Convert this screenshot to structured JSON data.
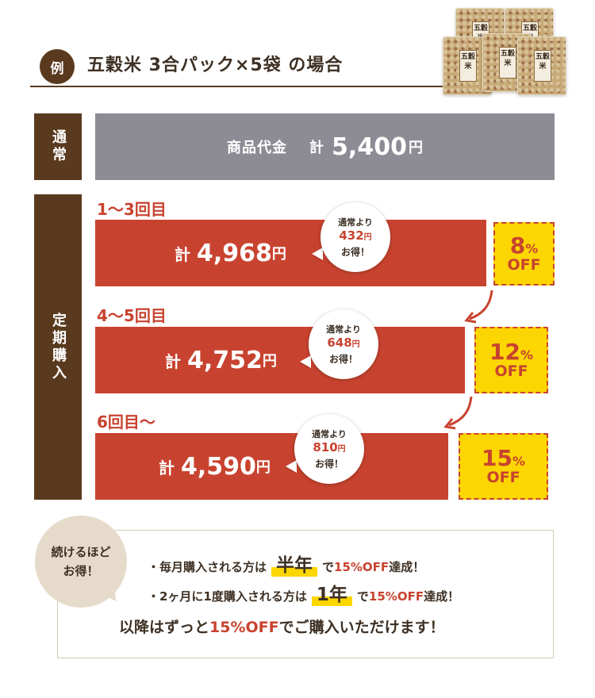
{
  "header": {
    "badge": "例",
    "title": "五穀米  3合パック×5袋  の場合",
    "pack_label": "五穀米"
  },
  "normal": {
    "side_label": "通常",
    "price_label": "商品代金",
    "kei": "計",
    "amount": "5,400",
    "yen": "円"
  },
  "subscription": {
    "side_label": "定期購入",
    "stages": [
      {
        "label": "1〜3回目",
        "kei": "計",
        "amount": "4,968",
        "yen": "円",
        "bubble_top": "通常より",
        "saving": "432",
        "saving_yen": "円",
        "bubble_bottom": "お得！",
        "off_pct": "8",
        "pct_sign": "%",
        "off_word": "OFF"
      },
      {
        "label": "4〜5回目",
        "kei": "計",
        "amount": "4,752",
        "yen": "円",
        "bubble_top": "通常より",
        "saving": "648",
        "saving_yen": "円",
        "bubble_bottom": "お得！",
        "off_pct": "12",
        "pct_sign": "%",
        "off_word": "OFF"
      },
      {
        "label": "6回目〜",
        "kei": "計",
        "amount": "4,590",
        "yen": "円",
        "bubble_top": "通常より",
        "saving": "810",
        "saving_yen": "円",
        "bubble_bottom": "お得！",
        "off_pct": "15",
        "pct_sign": "%",
        "off_word": "OFF"
      }
    ]
  },
  "bottom": {
    "tag_line1": "続けるほど",
    "tag_line2": "お得！",
    "line1_pre": "・毎月購入される方は",
    "line1_hl": "半年",
    "line1_mid": "で",
    "line1_red": "15%OFF",
    "line1_post": "達成！",
    "line2_pre": "・2ヶ月に1度購入される方は",
    "line2_hl": "1年",
    "line2_mid": "で",
    "line2_red": "15%OFF",
    "line2_post": "達成！",
    "final_pre": "以降はずっと",
    "final_red": "15%OFF",
    "final_post": "でご購入いただけます！"
  },
  "colors": {
    "brown": "#5a3a1e",
    "gray": "#8d8c95",
    "red": "#c8432f",
    "yellow": "#fcd600",
    "beige": "#e6dbca"
  }
}
